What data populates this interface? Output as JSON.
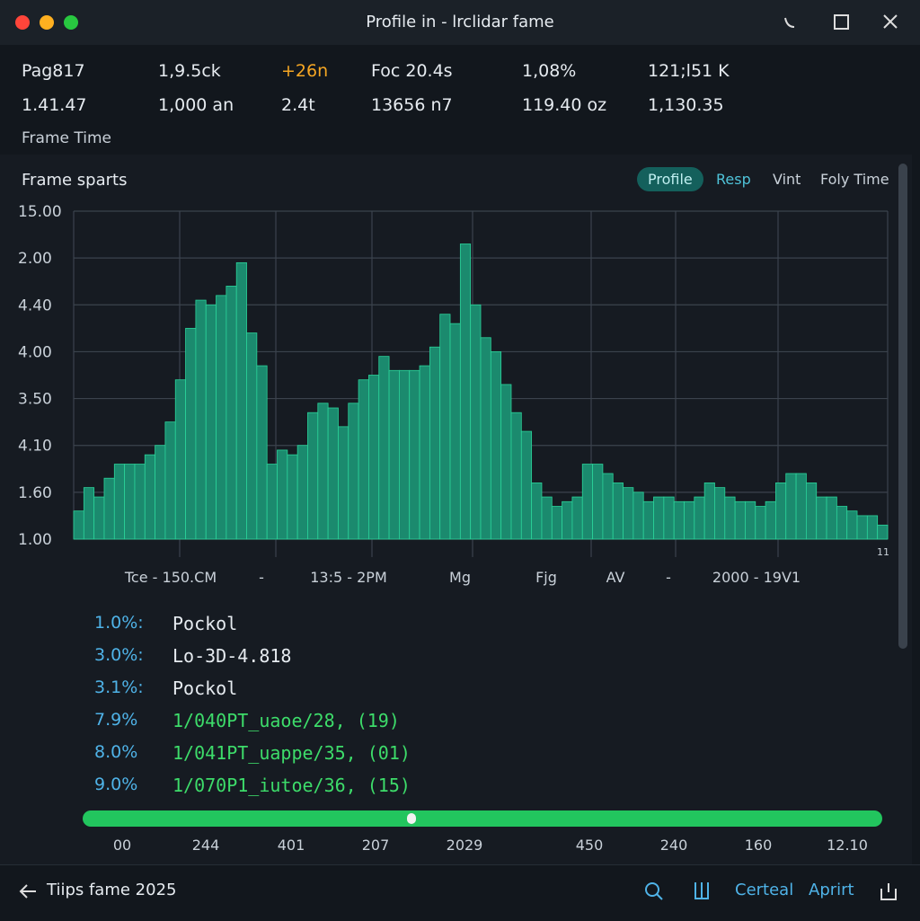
{
  "window": {
    "title": "Profile in - lrclidar fame"
  },
  "stats": {
    "rows": [
      [
        "Pag817",
        "1,9.5ck",
        "+26n",
        "Foc 20.4s",
        "1,08%",
        "121;l51 K"
      ],
      [
        "1.41.47",
        "1,000 an",
        "2.4t",
        "13656 n7",
        "119.40 oz",
        "1,130.35"
      ]
    ],
    "caption": "Frame  Time"
  },
  "panel": {
    "title": "Frame sparts",
    "tabs": [
      "Profile",
      "Resp",
      "Vint",
      "Foly Time"
    ]
  },
  "chart_data": {
    "type": "bar",
    "color": "#1b8a6e",
    "yticks": [
      {
        "value": 7,
        "label": "15.00"
      },
      {
        "value": 6,
        "label": "2.00"
      },
      {
        "value": 5,
        "label": "4.40"
      },
      {
        "value": 4,
        "label": "4.00"
      },
      {
        "value": 3,
        "label": "3.50"
      },
      {
        "value": 2,
        "label": "4.10"
      },
      {
        "value": 1,
        "label": "1.60"
      },
      {
        "value": 0,
        "label": "1.00"
      }
    ],
    "ylim": [
      0,
      7
    ],
    "grid": true,
    "x_labels": [
      "Tce - 150.CM",
      "-",
      "13:5  - 2PM",
      "Mg",
      "Fjg",
      "AV",
      "-",
      "2000 - 19V1",
      "11"
    ],
    "values": [
      0.6,
      1.1,
      0.9,
      1.3,
      1.6,
      1.6,
      1.6,
      1.8,
      2.0,
      2.5,
      3.4,
      4.5,
      5.1,
      5.0,
      5.2,
      5.4,
      5.9,
      4.4,
      3.7,
      1.6,
      1.9,
      1.8,
      2.0,
      2.7,
      2.9,
      2.8,
      2.4,
      2.9,
      3.4,
      3.5,
      3.9,
      3.6,
      3.6,
      3.6,
      3.7,
      4.1,
      4.8,
      4.6,
      6.3,
      5.0,
      4.3,
      4.0,
      3.3,
      2.7,
      2.3,
      1.2,
      0.9,
      0.7,
      0.8,
      0.9,
      1.6,
      1.6,
      1.4,
      1.2,
      1.1,
      1.0,
      0.8,
      0.9,
      0.9,
      0.8,
      0.8,
      0.9,
      1.2,
      1.1,
      0.9,
      0.8,
      0.8,
      0.7,
      0.8,
      1.2,
      1.4,
      1.4,
      1.2,
      0.9,
      0.9,
      0.7,
      0.6,
      0.5,
      0.5,
      0.3
    ]
  },
  "list": [
    {
      "pct": "1.0%:",
      "label": "Pockol"
    },
    {
      "pct": "3.0%:",
      "label": "Lo-3D-4.818"
    },
    {
      "pct": "3.1%:",
      "label": "Pockol"
    },
    {
      "pct": "7.9%",
      "label": "1/040PT_uaoe/28,  (19)"
    },
    {
      "pct": "8.0%",
      "label": "1/041PT_uappe/35,  (01)"
    },
    {
      "pct": "9.0%",
      "label": "1/070P1_iutoe/36,  (15)"
    }
  ],
  "scale": [
    "00",
    "244",
    "401",
    "207",
    "2029",
    "450",
    "240",
    "160",
    "12.10"
  ],
  "footer": {
    "back": "Tiips fame 2025",
    "links": [
      "Certeal",
      "Aprirt"
    ]
  }
}
